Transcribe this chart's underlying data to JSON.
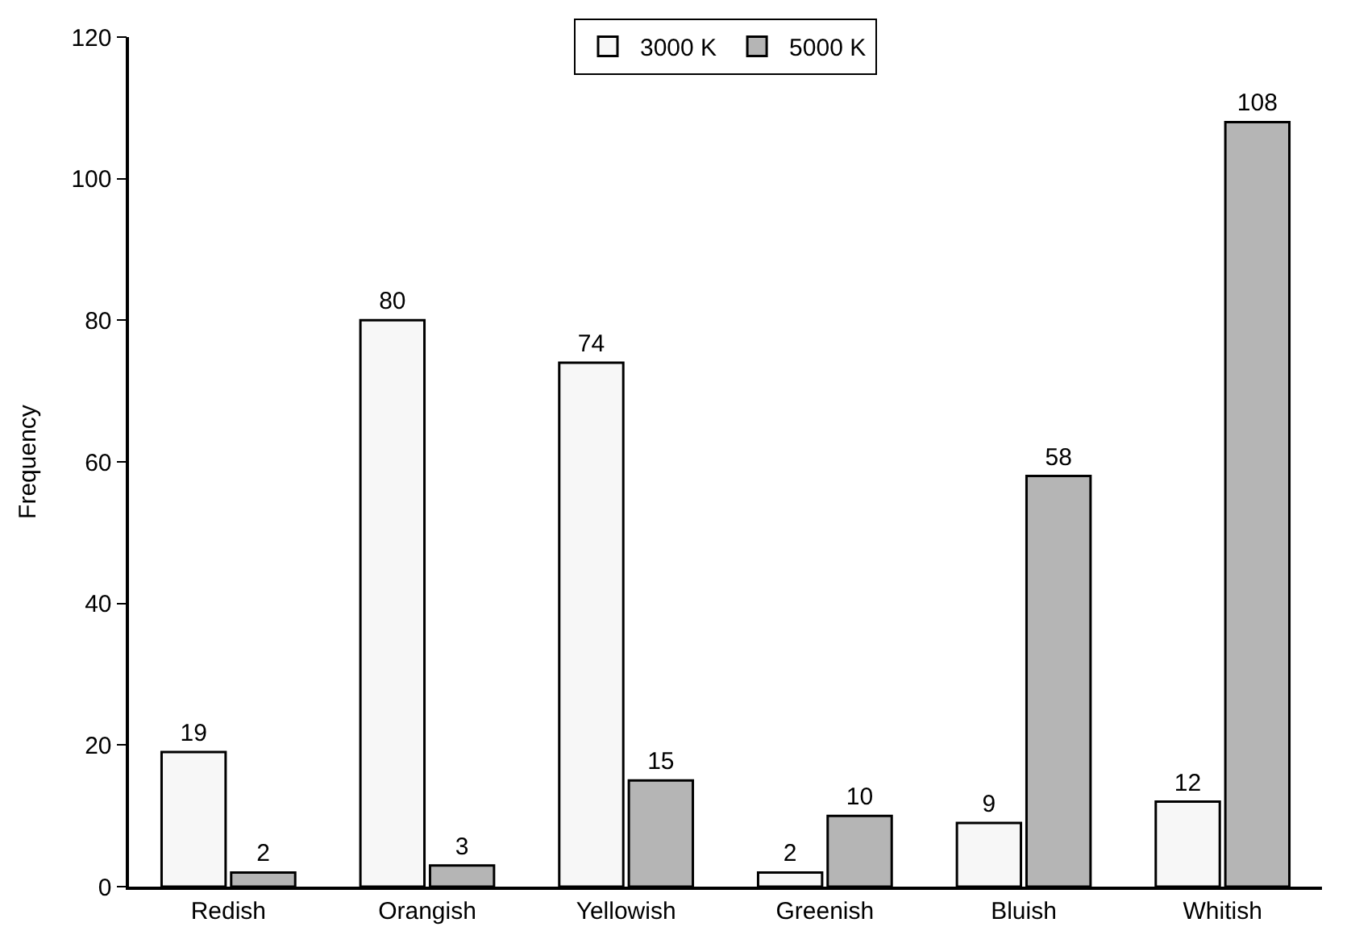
{
  "chart_data": {
    "type": "bar",
    "ylabel": "Frequency",
    "categories": [
      "Redish",
      "Orangish",
      "Yellowish",
      "Greenish",
      "Bluish",
      "Whitish"
    ],
    "series": [
      {
        "name": "3000 K",
        "color": "#f7f7f7",
        "values": [
          19,
          80,
          74,
          2,
          9,
          12
        ]
      },
      {
        "name": "5000 K",
        "color": "#b5b5b5",
        "values": [
          2,
          3,
          15,
          10,
          58,
          108
        ]
      }
    ],
    "ylim": [
      0,
      120
    ],
    "yticks": [
      0,
      20,
      40,
      60,
      80,
      100,
      120
    ],
    "grid": false,
    "legend": "top",
    "data_labels": true
  }
}
